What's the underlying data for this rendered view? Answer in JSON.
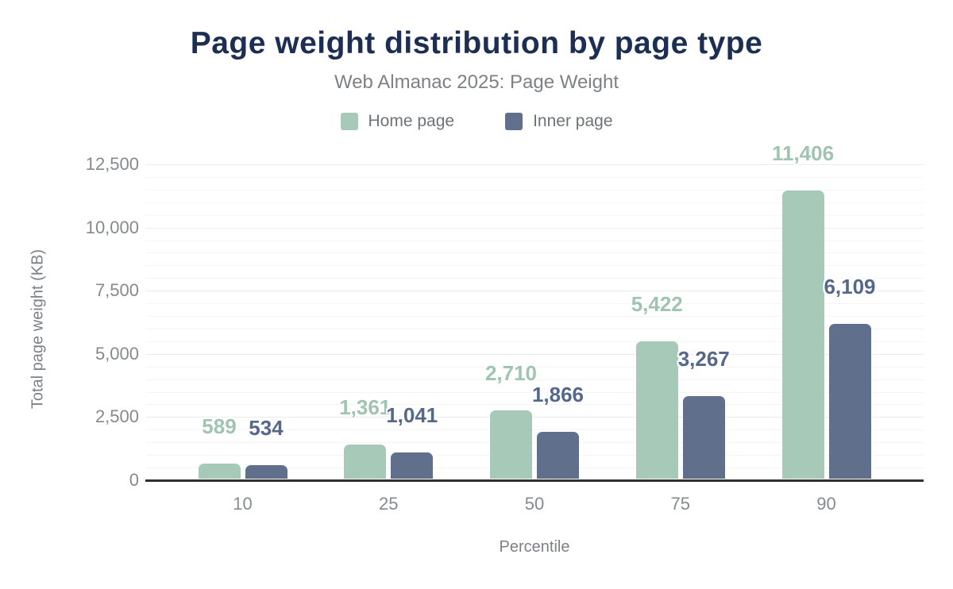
{
  "title": "Page weight distribution by page type",
  "subtitle": "Web Almanac 2025: Page Weight",
  "legend": {
    "items": [
      {
        "label": "Home page",
        "color": "#a7cab8"
      },
      {
        "label": "Inner page",
        "color": "#5f6f8c"
      }
    ]
  },
  "colors": {
    "title": "#1c2e52",
    "home_bar": "#a7cab8",
    "home_label": "#9fc5b1",
    "inner_bar": "#5f6f8c",
    "inner_label": "#55678a",
    "axis_line": "#303030"
  },
  "chart_data": {
    "type": "bar",
    "title": "Page weight distribution by page type",
    "subtitle": "Web Almanac 2025: Page Weight",
    "categories": [
      "10",
      "25",
      "50",
      "75",
      "90"
    ],
    "series": [
      {
        "name": "Home page",
        "color": "#a7cab8",
        "label_color": "#9fc5b1",
        "values": [
          589,
          1361,
          2710,
          5422,
          11406
        ],
        "value_labels": [
          "589",
          "1,361",
          "2,710",
          "5,422",
          "11,406"
        ]
      },
      {
        "name": "Inner page",
        "color": "#5f6f8c",
        "label_color": "#55678a",
        "values": [
          534,
          1041,
          1866,
          3267,
          6109
        ],
        "value_labels": [
          "534",
          "1,041",
          "1,866",
          "3,267",
          "6,109"
        ]
      }
    ],
    "xlabel": "Percentile",
    "ylabel": "Total page weight (KB)",
    "ylim": [
      0,
      12500
    ],
    "ytick_interval": 2500,
    "minor_tick_interval": 500,
    "yticks": [
      {
        "value": 0,
        "label": "0"
      },
      {
        "value": 2500,
        "label": "2,500"
      },
      {
        "value": 5000,
        "label": "5,000"
      },
      {
        "value": 7500,
        "label": "7,500"
      },
      {
        "value": 10000,
        "label": "10,000"
      },
      {
        "value": 12500,
        "label": "12,500"
      }
    ],
    "grid": true,
    "legend_position": "top"
  }
}
